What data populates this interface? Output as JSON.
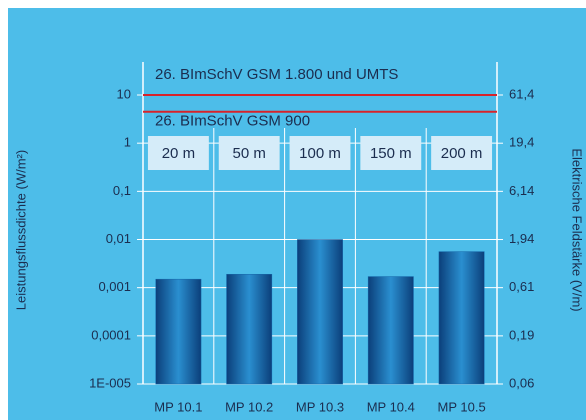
{
  "chart_data": {
    "type": "bar",
    "categories": [
      "MP 10.1",
      "MP 10.2",
      "MP 10.3",
      "MP 10.4",
      "MP 10.5"
    ],
    "distances": [
      "20 m",
      "50 m",
      "100 m",
      "150 m",
      "200 m"
    ],
    "values": [
      0.0015,
      0.0019,
      0.01,
      0.0017,
      0.0056
    ],
    "color": "#1565a8",
    "y_label": "Leistungsflussdichte (W/m²)",
    "y2_label": "Elektrische Feldstärke (V/m)",
    "y_scale": "log",
    "ylim": [
      1e-05,
      10
    ],
    "yticks": [
      10,
      1,
      {
        "value": 0.1,
        "label": "0,1"
      },
      {
        "value": 0.01,
        "label": "0,01"
      },
      {
        "value": 0.001,
        "label": "0,001"
      },
      {
        "value": 0.0001,
        "label": "0,0001"
      },
      {
        "value": 1e-05,
        "label": "1E-005"
      }
    ],
    "y2lim": [
      0.0614,
      61.4
    ],
    "y2ticks": [
      {
        "value": 61.4,
        "label": "61,4"
      },
      {
        "value": 19.4,
        "label": "19,4"
      },
      {
        "value": 6.14,
        "label": "6,14"
      },
      {
        "value": 1.94,
        "label": "1,94"
      },
      {
        "value": 0.614,
        "label": "0,61"
      },
      {
        "value": 0.194,
        "label": "0,19"
      },
      {
        "value": 0.0614,
        "label": "0,06"
      }
    ],
    "grid": true,
    "reference_lines": [
      {
        "label": "26. BImSchV GSM 1.800 und UMTS",
        "value": 10,
        "color": "#d8232a"
      },
      {
        "label": "26. BImSchV GSM 900",
        "value": 4.5,
        "color": "#d8232a"
      }
    ]
  }
}
